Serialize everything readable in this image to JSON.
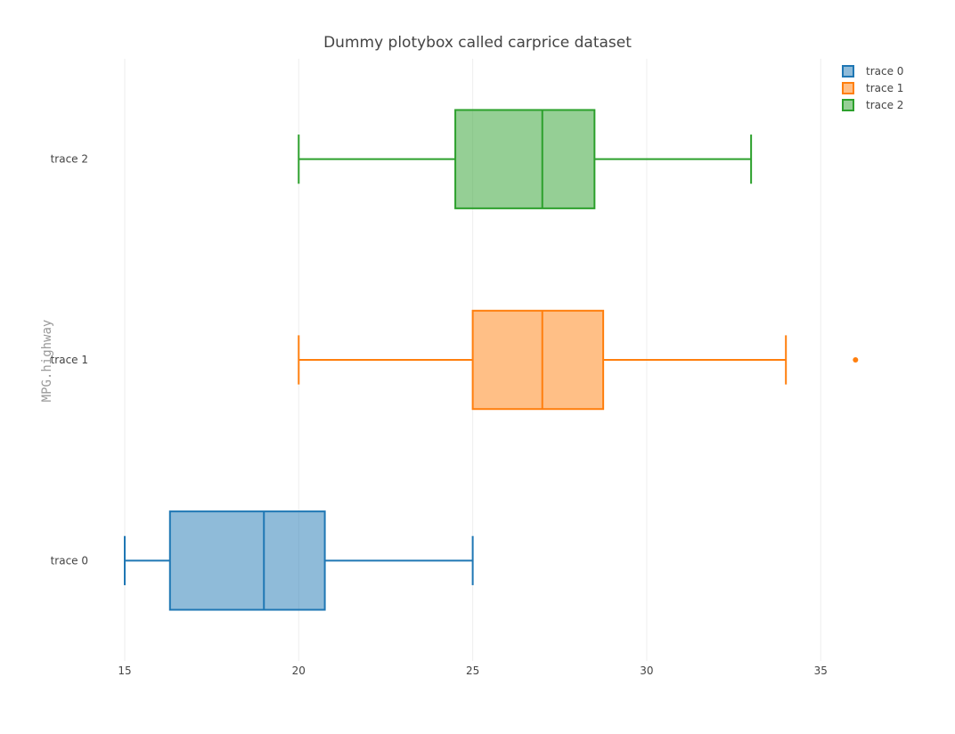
{
  "chart_data": {
    "type": "box",
    "orientation": "horizontal",
    "title": "Dummy plotybox called carprice dataset",
    "xlabel": "",
    "ylabel": "MPG.highway",
    "xlim": [
      15,
      37.4
    ],
    "xticks": [
      15,
      20,
      25,
      30,
      35
    ],
    "grid": true,
    "legend_position": "top-right",
    "series": [
      {
        "name": "trace 0",
        "color": "#1f77b4",
        "min": 15,
        "q1": 16.3,
        "median": 19,
        "q3": 20.75,
        "max": 25,
        "outliers": []
      },
      {
        "name": "trace 1",
        "color": "#ff7f0e",
        "min": 20,
        "q1": 25,
        "median": 27,
        "q3": 28.75,
        "max": 34,
        "outliers": [
          36
        ]
      },
      {
        "name": "trace 2",
        "color": "#2ca02c",
        "min": 20,
        "q1": 24.5,
        "median": 27,
        "q3": 28.5,
        "max": 33,
        "outliers": []
      }
    ]
  }
}
